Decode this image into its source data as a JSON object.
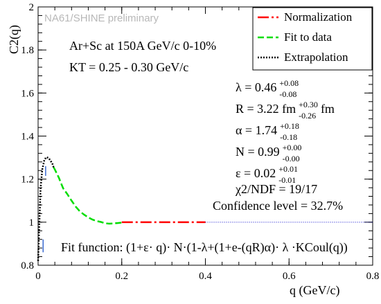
{
  "chart_data": {
    "type": "scatter",
    "title": "",
    "xlabel": "q (GeV/c)",
    "ylabel": "C2(q)",
    "xlim": [
      0,
      0.8
    ],
    "ylim": [
      0.8,
      2.0
    ],
    "x_ticks": [
      "0",
      "0.2",
      "0.4",
      "0.6",
      "0.8"
    ],
    "y_ticks": [
      "0.8",
      "1",
      "1.2",
      "1.4",
      "1.6",
      "1.8",
      "2"
    ],
    "grid": false,
    "legend_position": "top-right",
    "watermark": "NA61/SHINE preliminary",
    "system_label": "Ar+Sc at 150A GeV/c 0-10%",
    "kt_label": "KT = 0.25 - 0.30 GeV/c",
    "series": [
      {
        "name": "Normalization",
        "color": "#ff0000",
        "style": "long-dash",
        "x": [
          0.2,
          0.25,
          0.3,
          0.35,
          0.4
        ],
        "y": [
          1.0,
          1.0,
          1.0,
          1.0,
          1.0
        ]
      },
      {
        "name": "Fit to data",
        "color": "#00dd00",
        "style": "dash",
        "x": [
          0.037,
          0.04,
          0.045,
          0.05,
          0.055,
          0.06,
          0.07,
          0.08,
          0.09,
          0.1,
          0.11,
          0.12,
          0.13,
          0.14,
          0.15,
          0.16,
          0.17,
          0.18,
          0.19,
          0.2
        ],
        "y": [
          1.255,
          1.245,
          1.225,
          1.205,
          1.18,
          1.157,
          1.13,
          1.1,
          1.072,
          1.05,
          1.035,
          1.022,
          1.012,
          1.005,
          1.001,
          0.995,
          0.993,
          0.994,
          0.996,
          0.998
        ]
      },
      {
        "name": "Extrapolation",
        "color": "#000000",
        "style": "dotted",
        "x": [
          0.0,
          0.003,
          0.006,
          0.01,
          0.015,
          0.02,
          0.025,
          0.03,
          0.035,
          0.037
        ],
        "y": [
          0.82,
          1.0,
          1.16,
          1.245,
          1.29,
          1.302,
          1.298,
          1.285,
          1.268,
          1.255
        ]
      },
      {
        "name": "",
        "color": "#0000cc",
        "style": "fine-dotted",
        "x": [
          0.4,
          0.5,
          0.6,
          0.7,
          0.8
        ],
        "y": [
          1.0,
          1.0,
          1.0,
          1.0,
          1.0
        ]
      }
    ],
    "fit_params": [
      {
        "name": "λ",
        "value": "0.46",
        "up": "+0.08",
        "down": "-0.08"
      },
      {
        "name": "R",
        "value": "3.22 fm",
        "up": "+0.30",
        "down": "-0.26",
        "unit": "fm"
      },
      {
        "name": "α",
        "value": "1.74",
        "up": "+0.18",
        "down": "-0.18"
      },
      {
        "name": "N",
        "value": "0.99",
        "up": "+0.00",
        "down": "-0.00"
      },
      {
        "name": "ε",
        "value": "0.02",
        "up": "+0.01",
        "down": "-0.01"
      }
    ],
    "chi2_label": "χ2/NDF = 19/17",
    "confidence_label": "Confidence level = 32.7%",
    "fit_function": "Fit function: (1+ε· q)· N·(1-λ+(1+e-(qR)α)· λ ·KCoul(q))"
  },
  "colors": {
    "normalization": "#ff0000",
    "fit": "#00dd00",
    "extrapolation": "#000000",
    "tail": "#0000cc",
    "markers": "#3a6ad0",
    "watermark": "#b8b8b8"
  }
}
